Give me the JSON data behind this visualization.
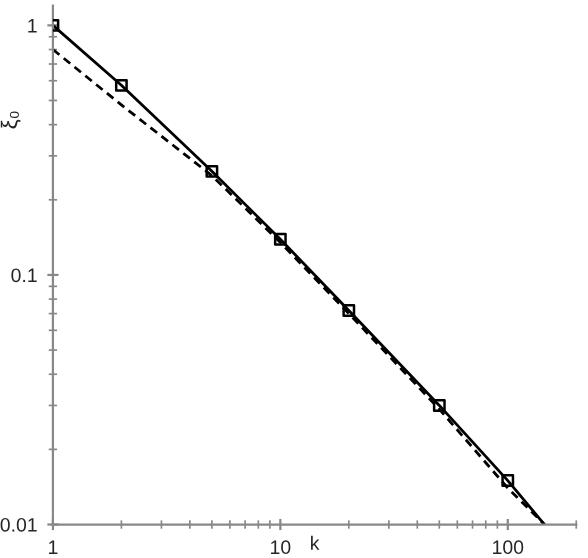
{
  "chart_data": {
    "type": "line",
    "xlabel": "k",
    "ylabel": "ξ₀",
    "log": "xy",
    "xlim": [
      1,
      200
    ],
    "ylim": [
      0.01,
      1.2
    ],
    "xticks": [
      1,
      10,
      100
    ],
    "yticks": [
      0.01,
      0.1,
      1
    ],
    "grid": false,
    "legend": false,
    "series": [
      {
        "color": "#000000",
        "line_style": "solid",
        "marker": "none",
        "x": [
          1,
          2,
          5,
          10,
          20,
          50,
          100,
          145
        ],
        "values": [
          1.0,
          0.575,
          0.26,
          0.139,
          0.072,
          0.03,
          0.015,
          0.01
        ]
      },
      {
        "type": "scatter",
        "color": "#000000",
        "marker": "square",
        "x": [
          1,
          2,
          5,
          10,
          20,
          50,
          100
        ],
        "values": [
          1.0,
          0.575,
          0.26,
          0.139,
          0.072,
          0.03,
          0.015
        ]
      },
      {
        "color": "#000000",
        "line_style": "dashed",
        "marker": "none",
        "x": [
          1,
          2,
          5,
          10,
          20,
          50,
          100,
          145
        ],
        "values": [
          0.8,
          0.48,
          0.25,
          0.135,
          0.07,
          0.029,
          0.014,
          0.01
        ]
      }
    ]
  }
}
